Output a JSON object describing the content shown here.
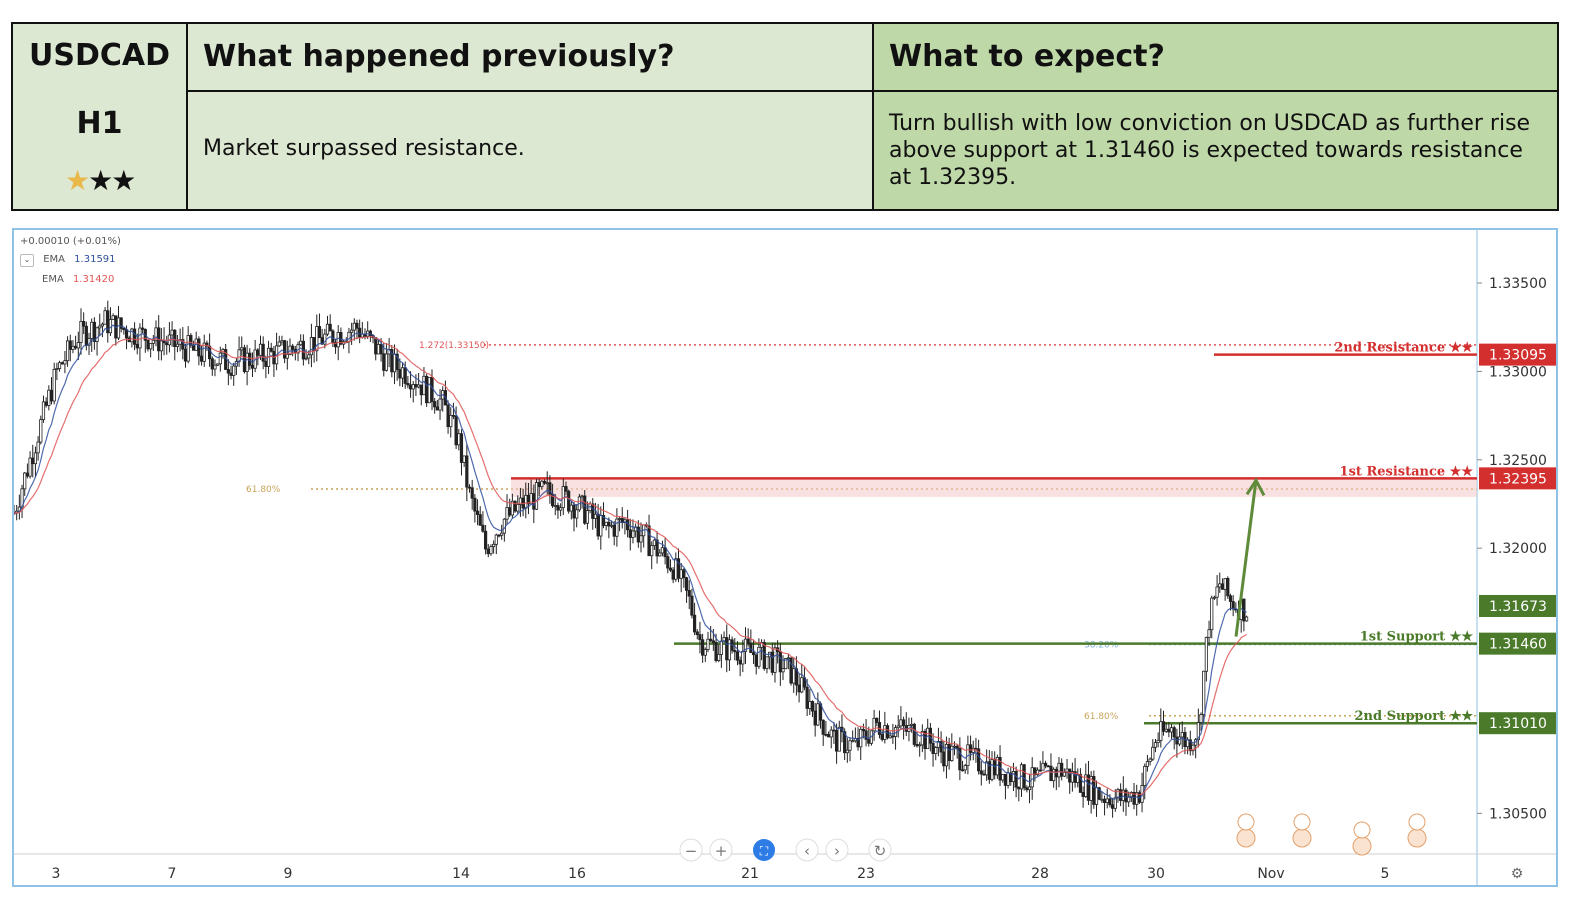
{
  "header": {
    "symbol": "USDCAD",
    "timeframe": "H1",
    "stars_filled": 1,
    "stars_total": 3,
    "colors": {
      "left": "#dde8d2",
      "right": "#bfd8a8",
      "star_on": "#e8b84a"
    },
    "previous_title": "What happened previously?",
    "previous_text": "Market surpassed resistance.",
    "expect_title": "What to expect?",
    "expect_text": "Turn bullish with low conviction on USDCAD as further rise above support at 1.31460 is expected towards resistance at 1.32395."
  },
  "chart_data": {
    "type": "candlestick",
    "symbol": "USDCAD",
    "timeframe": "H1",
    "change_text": "+0.00010 (+0.01%)",
    "ema": [
      {
        "name": "EMA",
        "value": "1.31591",
        "color": "#2f4f9e"
      },
      {
        "name": "EMA",
        "value": "1.31420",
        "color": "#e05555"
      }
    ],
    "x_ticks": [
      "3",
      "7",
      "9",
      "14",
      "16",
      "21",
      "23",
      "28",
      "30",
      "Nov",
      "5"
    ],
    "y_ticks": [
      "1.33500",
      "1.33000",
      "1.32500",
      "1.32000",
      "1.30500"
    ],
    "ylim": [
      1.3027,
      1.338
    ],
    "price_path": [
      [
        0,
        1.322
      ],
      [
        8,
        1.326
      ],
      [
        16,
        1.33
      ],
      [
        24,
        1.332
      ],
      [
        34,
        1.3328
      ],
      [
        44,
        1.3322
      ],
      [
        58,
        1.3316
      ],
      [
        70,
        1.331
      ],
      [
        80,
        1.3305
      ],
      [
        92,
        1.3308
      ],
      [
        102,
        1.3312
      ],
      [
        110,
        1.3316
      ],
      [
        118,
        1.332
      ],
      [
        128,
        1.3325
      ],
      [
        134,
        1.3315
      ],
      [
        140,
        1.3305
      ],
      [
        148,
        1.3298
      ],
      [
        154,
        1.329
      ],
      [
        160,
        1.3282
      ],
      [
        166,
        1.326
      ],
      [
        170,
        1.323
      ],
      [
        176,
        1.32
      ],
      [
        182,
        1.3215
      ],
      [
        190,
        1.3225
      ],
      [
        198,
        1.3232
      ],
      [
        206,
        1.3228
      ],
      [
        214,
        1.322
      ],
      [
        220,
        1.321
      ],
      [
        228,
        1.3215
      ],
      [
        236,
        1.3205
      ],
      [
        246,
        1.319
      ],
      [
        252,
        1.317
      ],
      [
        256,
        1.3148
      ],
      [
        262,
        1.3144
      ],
      [
        272,
        1.3142
      ],
      [
        282,
        1.3138
      ],
      [
        290,
        1.313
      ],
      [
        298,
        1.311
      ],
      [
        306,
        1.3092
      ],
      [
        314,
        1.3088
      ],
      [
        322,
        1.31
      ],
      [
        330,
        1.3098
      ],
      [
        338,
        1.3095
      ],
      [
        346,
        1.3085
      ],
      [
        354,
        1.3082
      ],
      [
        362,
        1.3078
      ],
      [
        372,
        1.3072
      ],
      [
        380,
        1.3068
      ],
      [
        390,
        1.3075
      ],
      [
        398,
        1.3068
      ],
      [
        406,
        1.306
      ],
      [
        414,
        1.3058
      ],
      [
        420,
        1.3062
      ],
      [
        426,
        1.3092
      ],
      [
        432,
        1.3098
      ],
      [
        438,
        1.309
      ],
      [
        442,
        1.3098
      ],
      [
        446,
        1.316
      ],
      [
        450,
        1.318
      ],
      [
        454,
        1.317
      ],
      [
        460,
        1.3165
      ]
    ],
    "path_length": 546,
    "levels": [
      {
        "label": "2nd Resistance ★★",
        "value": 1.33095,
        "value_text": "1.33095",
        "kind": "resistance"
      },
      {
        "label": "1st Resistance ★★",
        "value": 1.32395,
        "value_text": "1.32395",
        "kind": "resistance"
      },
      {
        "label": "1st Support ★★",
        "value": 1.3146,
        "value_text": "1.31460",
        "kind": "support"
      },
      {
        "label": "2nd Support ★★",
        "value": 1.3101,
        "value_text": "1.31010",
        "kind": "support"
      }
    ],
    "current_price": {
      "value": 1.31673,
      "value_text": "1.31673"
    },
    "fib_lines": [
      {
        "label": "1.272(1.33150)",
        "value": 1.3315
      },
      {
        "label": "61.80%",
        "value": 1.32335
      },
      {
        "label": "38.20%",
        "value": 1.31455
      },
      {
        "label": "61.80%",
        "value": 1.31052
      }
    ],
    "colors": {
      "resistance": "#d32f2f",
      "support": "#4a7a2a",
      "arrow": "#5e8a3a",
      "fib": "#c9a45a",
      "fib_ext": "#e05555",
      "candle": "#222222",
      "axis": "#8fc3e6"
    }
  }
}
